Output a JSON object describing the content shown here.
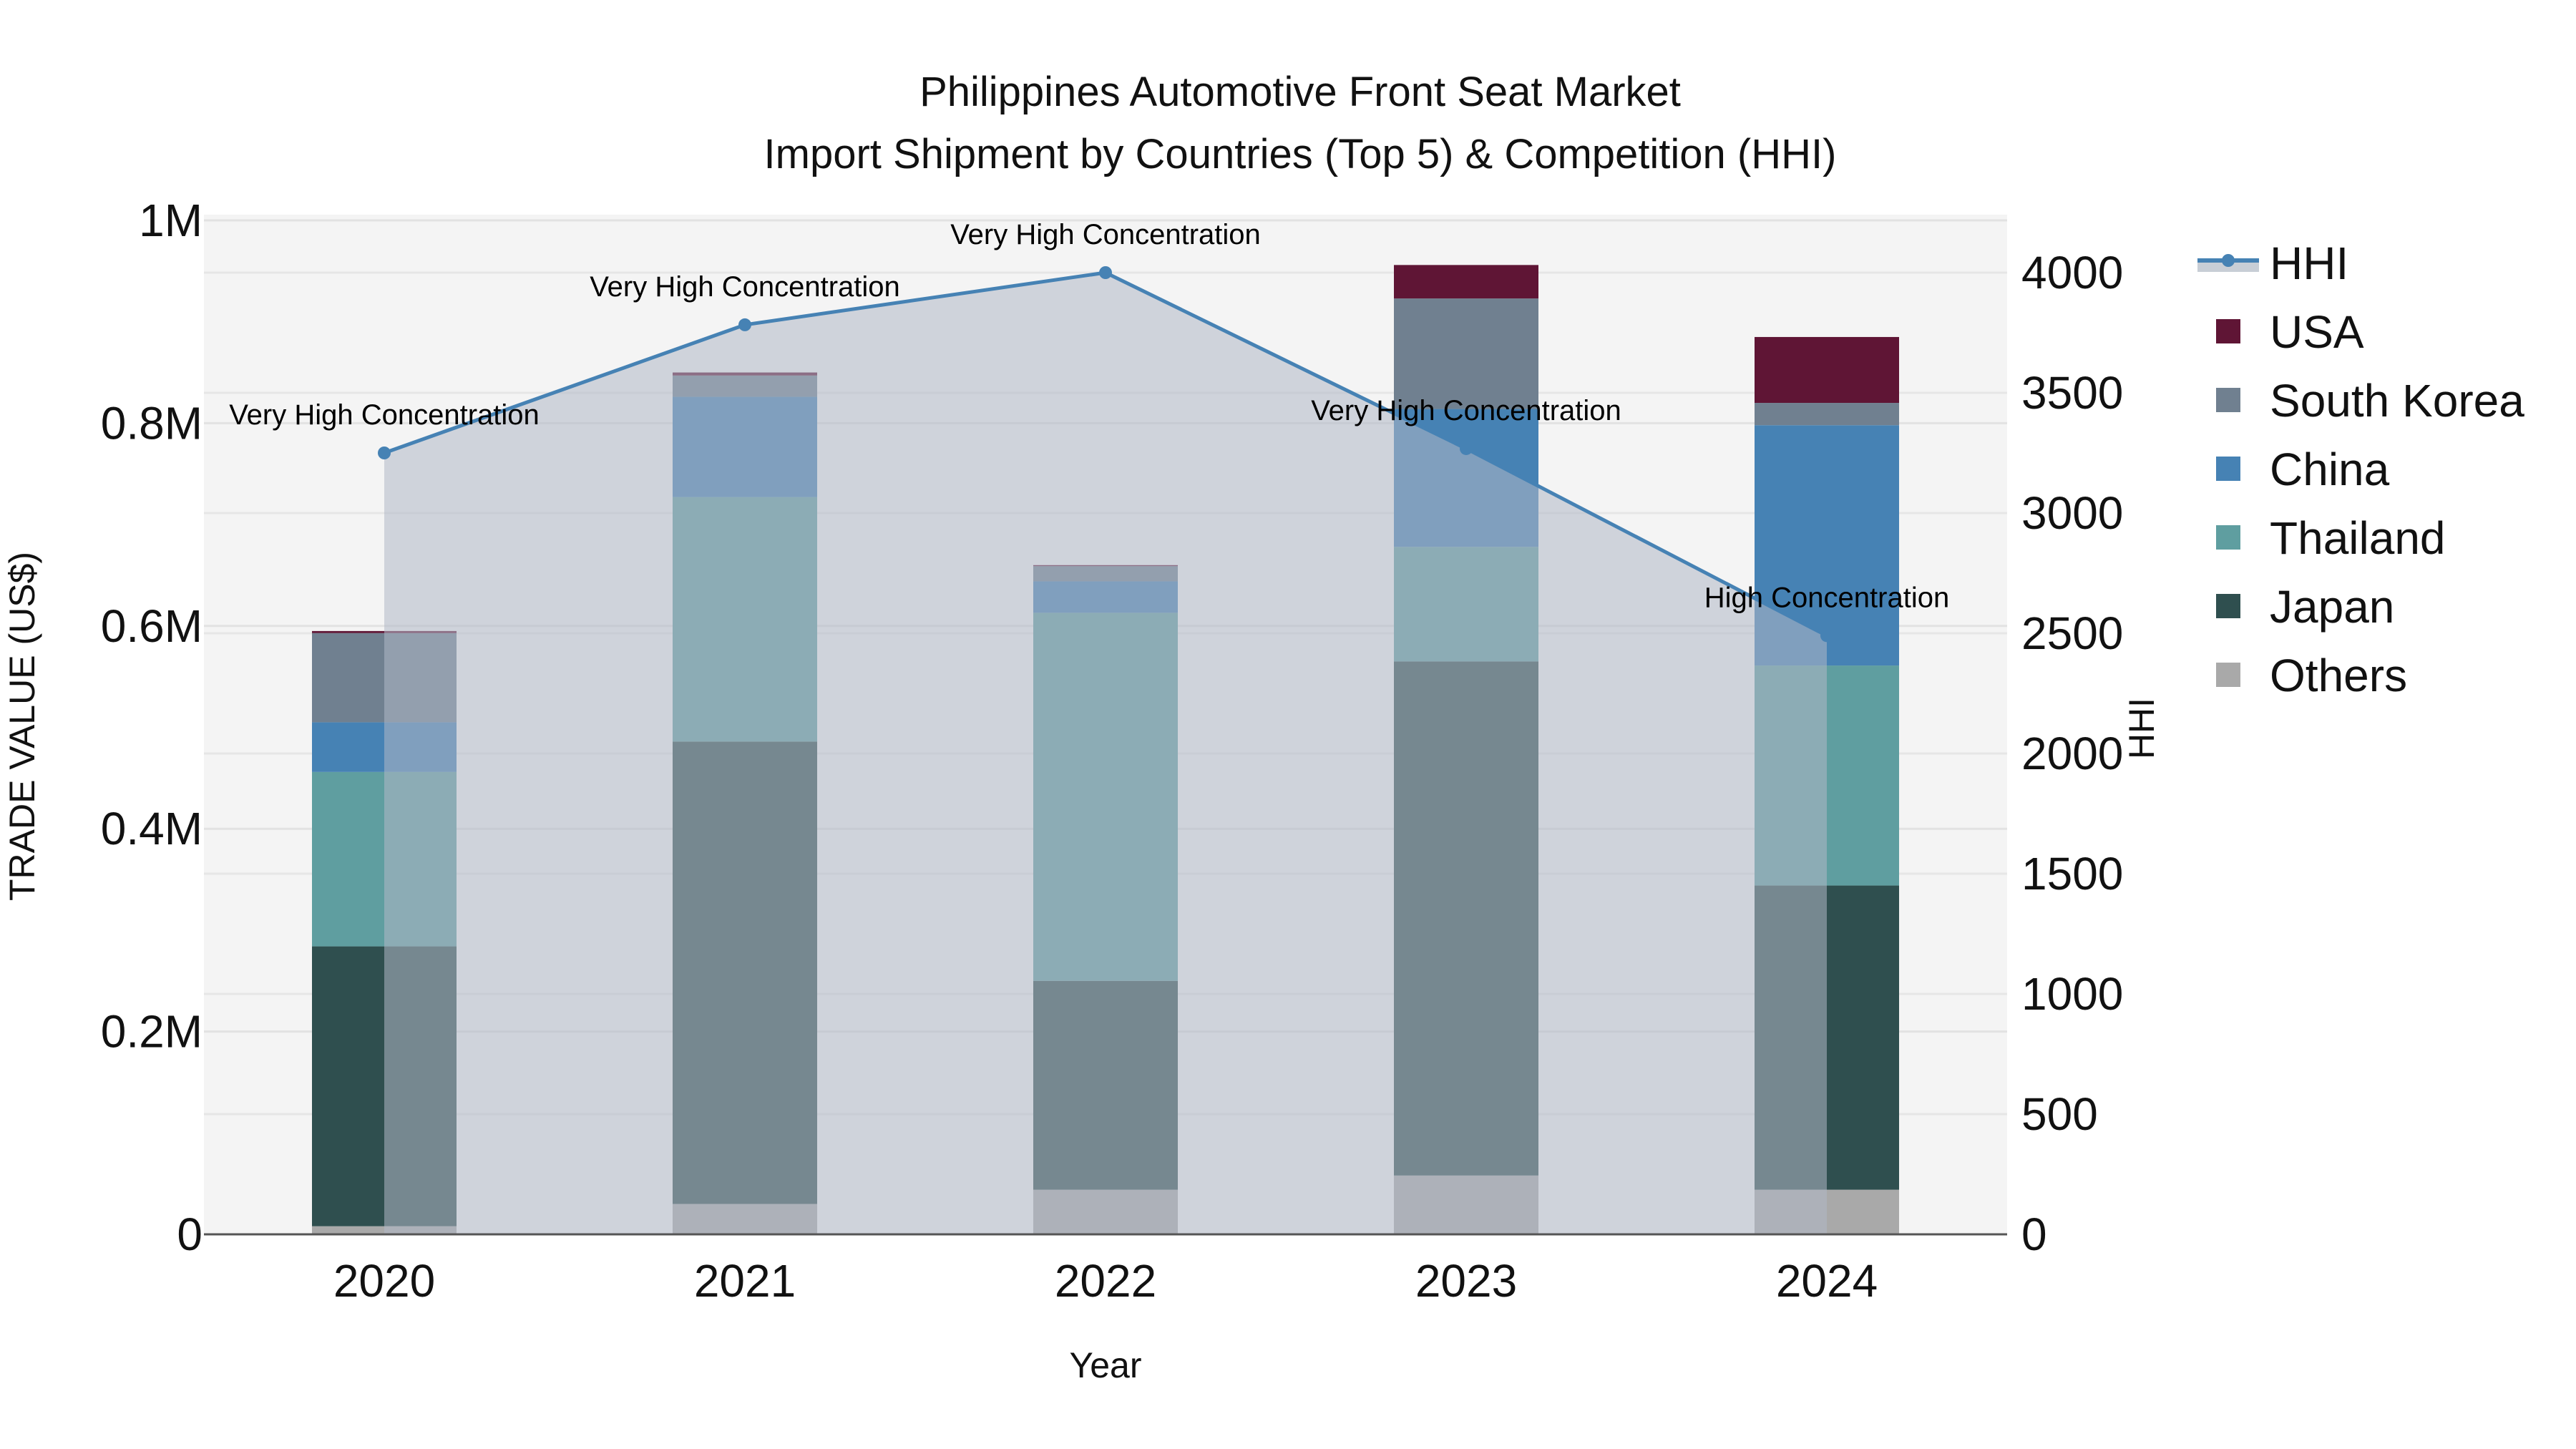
{
  "title": {
    "line1": "Philippines Automotive Front Seat Market",
    "line2": "Import Shipment by Countries (Top 5) & Competition (HHI)"
  },
  "axes": {
    "x_title": "Year",
    "y_left_title": "TRADE VALUE (US$)",
    "y_right_title": "HHI",
    "y_left_ticks": [
      "0",
      "0.2M",
      "0.4M",
      "0.6M",
      "0.8M",
      "1M"
    ],
    "y_right_ticks": [
      "0",
      "500",
      "1000",
      "1500",
      "2000",
      "2500",
      "3000",
      "3500",
      "4000"
    ]
  },
  "legend": [
    {
      "name": "HHI",
      "type": "line",
      "color": "#4682b4"
    },
    {
      "name": "USA",
      "type": "bar",
      "color": "#5f1535"
    },
    {
      "name": "South Korea",
      "type": "bar",
      "color": "#708090"
    },
    {
      "name": "China",
      "type": "bar",
      "color": "#4682b4"
    },
    {
      "name": "Thailand",
      "type": "bar",
      "color": "#5f9ea0"
    },
    {
      "name": "Japan",
      "type": "bar",
      "color": "#2f4f4f"
    },
    {
      "name": "Others",
      "type": "bar",
      "color": "#a9a9a9"
    }
  ],
  "chart_data": {
    "type": "bar",
    "subtype": "stacked bar with line overlay (dual axis)",
    "title": "Philippines Automotive Front Seat Market — Import Shipment by Countries (Top 5) & Competition (HHI)",
    "xlabel": "Year",
    "ylabel": "TRADE VALUE (US$)",
    "y2label": "HHI",
    "ylim": [
      0,
      1000000
    ],
    "y2lim": [
      0,
      4200
    ],
    "grid": true,
    "legend_position": "right",
    "categories": [
      "2020",
      "2021",
      "2022",
      "2023",
      "2024"
    ],
    "series": [
      {
        "name": "Others",
        "axis": "left",
        "color": "#a9a9a9",
        "values": [
          8000,
          30000,
          44000,
          58000,
          44000
        ]
      },
      {
        "name": "Japan",
        "axis": "left",
        "color": "#2f4f4f",
        "values": [
          276000,
          456000,
          206000,
          507000,
          300000
        ]
      },
      {
        "name": "Thailand",
        "axis": "left",
        "color": "#5f9ea0",
        "values": [
          172000,
          241000,
          363000,
          113000,
          217000
        ]
      },
      {
        "name": "China",
        "axis": "left",
        "color": "#4682b4",
        "values": [
          49000,
          99000,
          31000,
          136000,
          237000
        ]
      },
      {
        "name": "South Korea",
        "axis": "left",
        "color": "#708090",
        "values": [
          88000,
          21000,
          15000,
          109000,
          22000
        ]
      },
      {
        "name": "USA",
        "axis": "left",
        "color": "#5f1535",
        "values": [
          2000,
          3000,
          1000,
          33000,
          65000
        ]
      },
      {
        "name": "HHI",
        "axis": "right",
        "type": "line",
        "color": "#4682b4",
        "values": [
          3250,
          3783,
          4000,
          3268,
          2490
        ]
      }
    ],
    "annotations": [
      {
        "x": "2020",
        "text": "Very High Concentration"
      },
      {
        "x": "2021",
        "text": "Very High Concentration"
      },
      {
        "x": "2022",
        "text": "Very High Concentration"
      },
      {
        "x": "2023",
        "text": "Very High Concentration"
      },
      {
        "x": "2024",
        "text": "High Concentration"
      }
    ]
  }
}
